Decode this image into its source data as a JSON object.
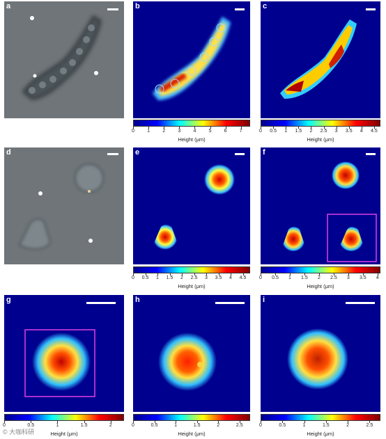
{
  "panels": {
    "a": "a",
    "b": "b",
    "c": "c",
    "d": "d",
    "e": "e",
    "f": "f",
    "g": "g",
    "h": "h",
    "i": "i"
  },
  "colorbars": [
    {
      "id": "b",
      "label": "Height (μm)",
      "ticks": [
        "0",
        "1",
        "2",
        "3",
        "4",
        "5",
        "6",
        "7"
      ],
      "max": 7.6
    },
    {
      "id": "c",
      "label": "Height (μm)",
      "ticks": [
        "0",
        "0.5",
        "1",
        "1.5",
        "2",
        "2.5",
        "3",
        "3.5",
        "4",
        "4.5"
      ],
      "max": 4.75
    },
    {
      "id": "e",
      "label": "Height (μm)",
      "ticks": [
        "0",
        "0.5",
        "1",
        "1.5",
        "2",
        "2.5",
        "3",
        "3.5",
        "4",
        "4.5"
      ],
      "max": 4.8
    },
    {
      "id": "f",
      "label": "Height (μm)",
      "ticks": [
        "0",
        "0.5",
        "1",
        "1.5",
        "2",
        "2.5",
        "3",
        "3.5",
        "4"
      ],
      "max": 4.1
    },
    {
      "id": "g",
      "label": "Height (μm)",
      "ticks": [
        "0",
        "0.5",
        "1",
        "1.5",
        "2"
      ],
      "max": 2.25
    },
    {
      "id": "h",
      "label": "Height (μm)",
      "ticks": [
        "0",
        "0.5",
        "1",
        "1.5",
        "2",
        "2.5"
      ],
      "max": 2.75
    },
    {
      "id": "i",
      "label": "Height (μm)",
      "ticks": [
        "0",
        "0.5",
        "1",
        "1.5",
        "2",
        "2.5"
      ],
      "max": 2.75
    }
  ],
  "watermark": "© 大咖科研",
  "colors": {
    "jet_low": "#00008f",
    "jet_high": "#800000",
    "highlight_box": "#e040e0",
    "micro_bg": "#6e7478"
  }
}
